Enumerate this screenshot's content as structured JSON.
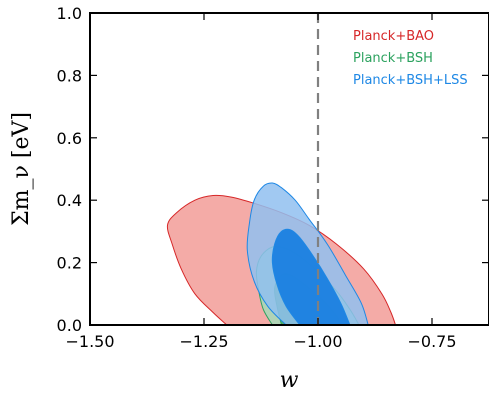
{
  "chart_data": {
    "type": "contour",
    "xlabel": "w",
    "ylabel": "Σm_ν [eV]",
    "xlim": [
      -1.5,
      -0.625
    ],
    "ylim": [
      0.0,
      1.0
    ],
    "xticks": [
      -1.5,
      -1.25,
      -1.0,
      -0.75
    ],
    "xtick_labels": [
      "−1.50",
      "−1.25",
      "−1.00",
      "−0.75"
    ],
    "yticks": [
      0.0,
      0.2,
      0.4,
      0.6,
      0.8,
      1.0
    ],
    "ytick_labels": [
      "0.0",
      "0.2",
      "0.4",
      "0.6",
      "0.8",
      "1.0"
    ],
    "reference_line": {
      "x": -1.0,
      "style": "dashed",
      "color": "#808080"
    },
    "legend": {
      "placement": "top-right"
    },
    "series": [
      {
        "name": "Planck+BAO",
        "color": "#d62728",
        "contours": [
          {
            "level": "outer",
            "fill": "#f3a29d",
            "points": [
              [
                -1.2,
                0.0
              ],
              [
                -1.23,
                0.04
              ],
              [
                -1.27,
                0.1
              ],
              [
                -1.3,
                0.18
              ],
              [
                -1.32,
                0.26
              ],
              [
                -1.33,
                0.32
              ],
              [
                -1.31,
                0.36
              ],
              [
                -1.27,
                0.4
              ],
              [
                -1.23,
                0.415
              ],
              [
                -1.19,
                0.41
              ],
              [
                -1.14,
                0.39
              ],
              [
                -1.08,
                0.36
              ],
              [
                -1.02,
                0.32
              ],
              [
                -0.96,
                0.26
              ],
              [
                -0.9,
                0.18
              ],
              [
                -0.86,
                0.1
              ],
              [
                -0.84,
                0.04
              ],
              [
                -0.83,
                0.0
              ]
            ]
          }
        ]
      },
      {
        "name": "Planck+BSH",
        "color": "#2ca25f",
        "contours": [
          {
            "level": "outer",
            "fill": "#a3d9b8",
            "points": [
              [
                -1.1,
                0.0
              ],
              [
                -1.12,
                0.05
              ],
              [
                -1.13,
                0.11
              ],
              [
                -1.135,
                0.17
              ],
              [
                -1.125,
                0.22
              ],
              [
                -1.1,
                0.25
              ],
              [
                -1.07,
                0.245
              ],
              [
                -1.04,
                0.22
              ],
              [
                -1.0,
                0.17
              ],
              [
                -0.96,
                0.11
              ],
              [
                -0.93,
                0.05
              ],
              [
                -0.91,
                0.0
              ]
            ]
          },
          {
            "level": "inner",
            "fill": "#4daf6b",
            "points": [
              [
                -1.08,
                0.0
              ],
              [
                -1.09,
                0.06
              ],
              [
                -1.095,
                0.12
              ],
              [
                -1.08,
                0.16
              ],
              [
                -1.06,
                0.16
              ],
              [
                -1.03,
                0.13
              ],
              [
                -0.99,
                0.08
              ],
              [
                -0.96,
                0.03
              ],
              [
                -0.95,
                0.0
              ]
            ]
          }
        ]
      },
      {
        "name": "Planck+BSH+LSS",
        "color": "#1e88e5",
        "contours": [
          {
            "level": "outer",
            "fill": "#90c0f0",
            "points": [
              [
                -1.07,
                0.0
              ],
              [
                -1.11,
                0.06
              ],
              [
                -1.14,
                0.14
              ],
              [
                -1.155,
                0.24
              ],
              [
                -1.15,
                0.33
              ],
              [
                -1.14,
                0.4
              ],
              [
                -1.12,
                0.445
              ],
              [
                -1.1,
                0.455
              ],
              [
                -1.08,
                0.44
              ],
              [
                -1.05,
                0.4
              ],
              [
                -1.02,
                0.34
              ],
              [
                -0.98,
                0.26
              ],
              [
                -0.94,
                0.16
              ],
              [
                -0.905,
                0.07
              ],
              [
                -0.89,
                0.0
              ]
            ]
          },
          {
            "level": "inner",
            "fill": "#1a7fe0",
            "points": [
              [
                -1.04,
                0.0
              ],
              [
                -1.07,
                0.06
              ],
              [
                -1.09,
                0.13
              ],
              [
                -1.1,
                0.2
              ],
              [
                -1.095,
                0.26
              ],
              [
                -1.08,
                0.3
              ],
              [
                -1.06,
                0.305
              ],
              [
                -1.04,
                0.28
              ],
              [
                -1.01,
                0.22
              ],
              [
                -0.98,
                0.15
              ],
              [
                -0.95,
                0.07
              ],
              [
                -0.93,
                0.0
              ]
            ]
          }
        ]
      }
    ]
  }
}
